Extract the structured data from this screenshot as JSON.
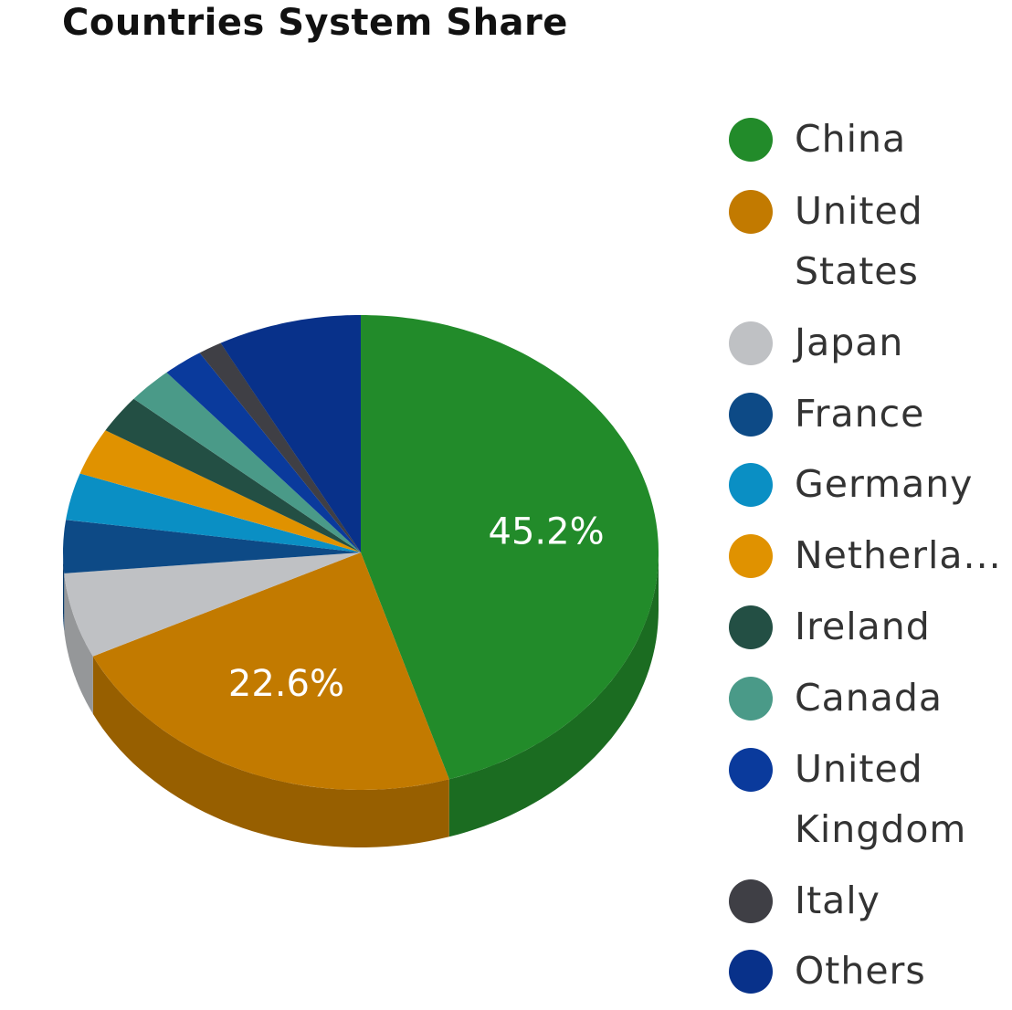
{
  "chart_data": {
    "type": "pie",
    "title": "Countries System Share",
    "style": "3d",
    "legend_position": "right",
    "slices": [
      {
        "name": "China",
        "value": 45.2,
        "label": "45.2%",
        "color": "#228B2A"
      },
      {
        "name": "United States",
        "value": 22.6,
        "label": "22.6%",
        "color": "#C27A00"
      },
      {
        "name": "Japan",
        "value": 5.8,
        "color": "#BFC1C4"
      },
      {
        "name": "France",
        "value": 3.6,
        "color": "#0D4A86"
      },
      {
        "name": "Germany",
        "value": 3.2,
        "color": "#0A8FC4"
      },
      {
        "name": "Netherla...",
        "value": 3.2,
        "color": "#E09200"
      },
      {
        "name": "Ireland",
        "value": 2.6,
        "color": "#234F44"
      },
      {
        "name": "Canada",
        "value": 2.5,
        "color": "#4A9A88"
      },
      {
        "name": "United Kingdom",
        "value": 2.2,
        "color": "#0A3A9C"
      },
      {
        "name": "Italy",
        "value": 1.3,
        "color": "#3F3F45"
      },
      {
        "name": "Others",
        "value": 7.8,
        "color": "#08318A"
      }
    ]
  }
}
